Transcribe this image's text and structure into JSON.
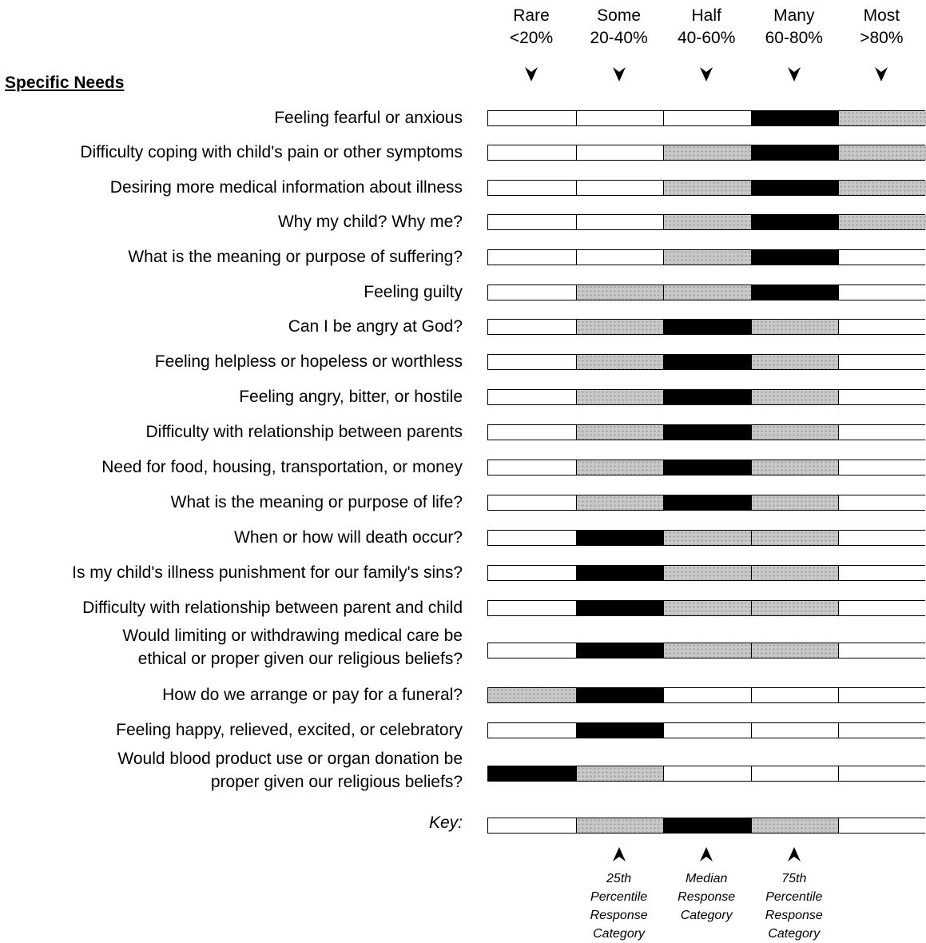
{
  "chart_data": {
    "type": "bar",
    "section_title": "Specific Needs",
    "categories": [
      {
        "line1": "Rare",
        "line2": "<20%"
      },
      {
        "line1": "Some",
        "line2": "20-40%"
      },
      {
        "line1": "Half",
        "line2": "40-60%"
      },
      {
        "line1": "Many",
        "line2": "60-80%"
      },
      {
        "line1": "Most",
        "line2": ">80%"
      }
    ],
    "rows": [
      {
        "label": [
          "Feeling fearful or anxious"
        ],
        "cells": [
          "empty",
          "empty",
          "empty",
          "median",
          "iqr"
        ]
      },
      {
        "label": [
          "Difficulty coping with child's pain or other symptoms"
        ],
        "cells": [
          "empty",
          "empty",
          "iqr",
          "median",
          "iqr"
        ]
      },
      {
        "label": [
          "Desiring more medical information about illness"
        ],
        "cells": [
          "empty",
          "empty",
          "iqr",
          "median",
          "iqr"
        ]
      },
      {
        "label": [
          "Why my child?  Why me?"
        ],
        "cells": [
          "empty",
          "empty",
          "iqr",
          "median",
          "iqr"
        ]
      },
      {
        "label": [
          "What is the meaning or purpose of suffering?"
        ],
        "cells": [
          "empty",
          "empty",
          "iqr",
          "median",
          "empty"
        ]
      },
      {
        "label": [
          "Feeling guilty"
        ],
        "cells": [
          "empty",
          "iqr",
          "iqr",
          "median",
          "empty"
        ]
      },
      {
        "label": [
          "Can I be angry at God?"
        ],
        "cells": [
          "empty",
          "iqr",
          "median",
          "iqr",
          "empty"
        ]
      },
      {
        "label": [
          "Feeling helpless or hopeless or worthless"
        ],
        "cells": [
          "empty",
          "iqr",
          "median",
          "iqr",
          "empty"
        ]
      },
      {
        "label": [
          "Feeling angry, bitter, or hostile"
        ],
        "cells": [
          "empty",
          "iqr",
          "median",
          "iqr",
          "empty"
        ]
      },
      {
        "label": [
          "Difficulty with relationship between parents"
        ],
        "cells": [
          "empty",
          "iqr",
          "median",
          "iqr",
          "empty"
        ]
      },
      {
        "label": [
          "Need for food, housing, transportation, or money"
        ],
        "cells": [
          "empty",
          "iqr",
          "median",
          "iqr",
          "empty"
        ]
      },
      {
        "label": [
          "What is the meaning or purpose of life?"
        ],
        "cells": [
          "empty",
          "iqr",
          "median",
          "iqr",
          "empty"
        ]
      },
      {
        "label": [
          "When or how will death occur?"
        ],
        "cells": [
          "empty",
          "median",
          "iqr",
          "iqr",
          "empty"
        ]
      },
      {
        "label": [
          "Is my child's illness punishment for our family's sins?"
        ],
        "cells": [
          "empty",
          "median",
          "iqr",
          "iqr",
          "empty"
        ]
      },
      {
        "label": [
          "Difficulty with relationship between parent and child"
        ],
        "cells": [
          "empty",
          "median",
          "iqr",
          "iqr",
          "empty"
        ]
      },
      {
        "label": [
          "Would limiting or withdrawing medical care be",
          "ethical or proper given our religious beliefs?"
        ],
        "cells": [
          "empty",
          "median",
          "iqr",
          "iqr",
          "empty"
        ]
      },
      {
        "label": [
          "How do we arrange or pay for a funeral?"
        ],
        "cells": [
          "iqr",
          "median",
          "empty",
          "empty",
          "empty"
        ]
      },
      {
        "label": [
          "Feeling happy, relieved, excited, or celebratory"
        ],
        "cells": [
          "empty",
          "median",
          "empty",
          "empty",
          "empty"
        ]
      },
      {
        "label": [
          "Would blood product use or organ donation be",
          "proper given our religious beliefs?"
        ],
        "cells": [
          "median",
          "iqr",
          "empty",
          "empty",
          "empty"
        ]
      }
    ],
    "key": {
      "label": "Key:",
      "cells": [
        "empty",
        "iqr",
        "median",
        "iqr",
        "empty"
      ],
      "notes": [
        {
          "lines": [
            "25th",
            "Percentile",
            "Response",
            "Category"
          ]
        },
        {
          "lines": [
            "Median",
            "Response",
            "Category"
          ]
        },
        {
          "lines": [
            "75th",
            "Percentile",
            "Response",
            "Category"
          ]
        }
      ]
    },
    "colors": {
      "median": "#000000",
      "iqr": "#c8c8c8",
      "empty": "#ffffff"
    }
  }
}
